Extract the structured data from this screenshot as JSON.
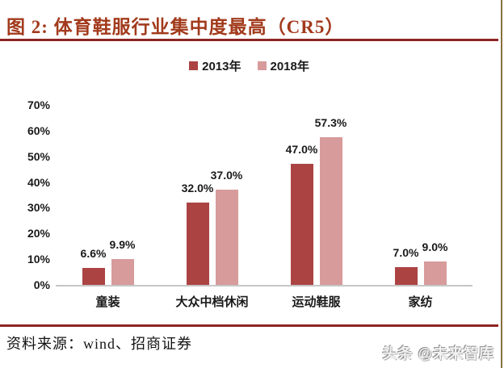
{
  "figure": {
    "title": "图 2:  体育鞋服行业集中度最高（CR5）",
    "title_color": "#A23A1C",
    "rule_color": "#8E2522"
  },
  "chart_data": {
    "type": "bar",
    "title": "体育鞋服行业集中度最高（CR5）",
    "categories": [
      "童装",
      "大众中档休闲",
      "运动鞋服",
      "家纺"
    ],
    "series": [
      {
        "name": "2013年",
        "color": "#AC4343",
        "values": [
          6.6,
          32.0,
          47.0,
          7.0
        ],
        "value_labels": [
          "6.6%",
          "32.0%",
          "47.0%",
          "7.0%"
        ]
      },
      {
        "name": "2018年",
        "color": "#D79B9B",
        "values": [
          9.9,
          37.0,
          57.3,
          9.0
        ],
        "value_labels": [
          "9.9%",
          "37.0%",
          "57.3%",
          "9.0%"
        ]
      }
    ],
    "xlabel": "",
    "ylabel": "",
    "ylim": [
      0,
      70
    ],
    "ytick_step": 10,
    "yticks": [
      "0%",
      "10%",
      "20%",
      "30%",
      "40%",
      "50%",
      "60%",
      "70%"
    ],
    "grid": false,
    "legend_position": "top"
  },
  "footer": {
    "source_label": "资料来源：wind、招商证券",
    "watermark": "头条 @未来智库"
  }
}
